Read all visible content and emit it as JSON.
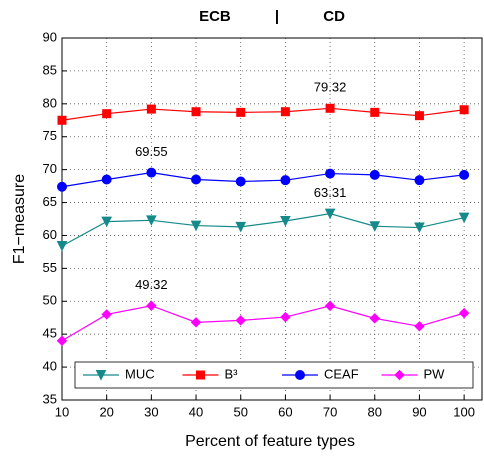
{
  "chart_data": {
    "type": "line",
    "title": "ECB | CD",
    "x_label": "Percent of feature types",
    "y_label": "F1−measure",
    "x": [
      10,
      20,
      30,
      40,
      50,
      60,
      70,
      80,
      90,
      100
    ],
    "series": [
      {
        "name": "MUC",
        "color": "#168a8a",
        "marker": "triangle",
        "values": [
          58.4,
          62.1,
          62.3,
          61.5,
          61.3,
          62.2,
          63.31,
          61.4,
          61.2,
          62.7
        ]
      },
      {
        "name": "B³",
        "color": "#ff0000",
        "marker": "square",
        "values": [
          77.5,
          78.5,
          79.2,
          78.8,
          78.7,
          78.8,
          79.32,
          78.7,
          78.2,
          79.1
        ]
      },
      {
        "name": "CEAF",
        "color": "#0000ff",
        "marker": "circle",
        "values": [
          67.4,
          68.5,
          69.55,
          68.5,
          68.2,
          68.4,
          69.4,
          69.2,
          68.4,
          69.2
        ]
      },
      {
        "name": "PW",
        "color": "#ff00ff",
        "marker": "diamond",
        "values": [
          44.0,
          48.0,
          49.32,
          46.8,
          47.1,
          47.6,
          49.3,
          47.4,
          46.2,
          48.2
        ]
      }
    ],
    "annotations": [
      {
        "text": "79.32",
        "x": 70,
        "y": 79.32
      },
      {
        "text": "69.55",
        "x": 30,
        "y": 69.55
      },
      {
        "text": "63.31",
        "x": 70,
        "y": 63.31
      },
      {
        "text": "49.32",
        "x": 30,
        "y": 49.32
      }
    ],
    "xlim": [
      10,
      104
    ],
    "xticks": [
      10,
      20,
      30,
      40,
      50,
      60,
      70,
      80,
      90,
      100
    ],
    "ylim": [
      35,
      90
    ],
    "yticks": [
      35,
      40,
      45,
      50,
      55,
      60,
      65,
      70,
      75,
      80,
      85,
      90
    ],
    "grid": true,
    "legend": "bottom"
  }
}
